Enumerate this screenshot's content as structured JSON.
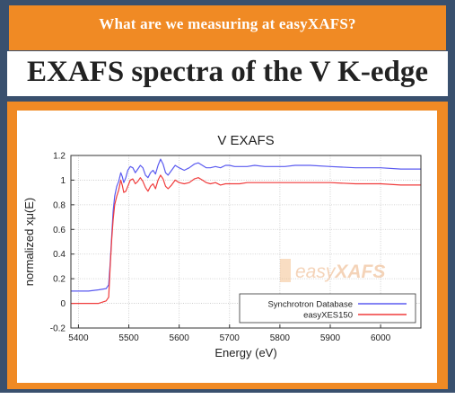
{
  "banner": {
    "text": "What are we measuring at easyXAFS?"
  },
  "heading": {
    "text": "EXAFS spectra of the V K-edge"
  },
  "watermark": {
    "prefix": "easy",
    "suffix": "XAFS"
  },
  "colors": {
    "navy": "#39506e",
    "orange": "#f08a24",
    "series_blue": "#5b5bf0",
    "series_red": "#f03c3c"
  },
  "chart_data": {
    "type": "line",
    "title": "V EXAFS",
    "xlabel": "Energy   (eV)",
    "ylabel": "normalized xμ(E)",
    "xlim": [
      5385,
      6080
    ],
    "ylim": [
      -0.2,
      1.2
    ],
    "xticks": [
      "5400",
      "5500",
      "5600",
      "5700",
      "5800",
      "5900",
      "6000"
    ],
    "yticks": [
      "-0.2",
      "0",
      "0.2",
      "0.4",
      "0.6",
      "0.8",
      "1",
      "1.2"
    ],
    "grid": true,
    "legend_position": "bottom-right",
    "series": [
      {
        "name": "Synchrotron Database",
        "color": "#5b5bf0",
        "x": [
          5385,
          5400,
          5420,
          5440,
          5455,
          5460,
          5463,
          5466,
          5469,
          5472,
          5476,
          5480,
          5484,
          5487,
          5490,
          5494,
          5498,
          5503,
          5508,
          5513,
          5518,
          5523,
          5528,
          5533,
          5538,
          5543,
          5548,
          5553,
          5558,
          5563,
          5568,
          5573,
          5578,
          5585,
          5592,
          5600,
          5610,
          5620,
          5630,
          5638,
          5646,
          5654,
          5662,
          5672,
          5682,
          5692,
          5700,
          5710,
          5720,
          5735,
          5750,
          5770,
          5790,
          5810,
          5830,
          5860,
          5900,
          5950,
          6000,
          6040,
          6080
        ],
        "y": [
          0.1,
          0.1,
          0.1,
          0.11,
          0.12,
          0.15,
          0.33,
          0.55,
          0.75,
          0.87,
          0.95,
          0.99,
          1.06,
          1.03,
          0.98,
          1.02,
          1.08,
          1.11,
          1.1,
          1.06,
          1.09,
          1.12,
          1.1,
          1.04,
          1.02,
          1.06,
          1.08,
          1.05,
          1.12,
          1.17,
          1.13,
          1.06,
          1.04,
          1.08,
          1.12,
          1.1,
          1.08,
          1.1,
          1.13,
          1.14,
          1.12,
          1.1,
          1.1,
          1.11,
          1.1,
          1.12,
          1.12,
          1.11,
          1.11,
          1.11,
          1.12,
          1.11,
          1.11,
          1.11,
          1.12,
          1.12,
          1.11,
          1.1,
          1.1,
          1.09,
          1.09
        ]
      },
      {
        "name": "easyXES150",
        "color": "#f03c3c",
        "x": [
          5385,
          5400,
          5420,
          5440,
          5455,
          5460,
          5463,
          5466,
          5469,
          5472,
          5476,
          5480,
          5484,
          5487,
          5490,
          5494,
          5498,
          5503,
          5508,
          5513,
          5518,
          5523,
          5528,
          5533,
          5538,
          5543,
          5548,
          5553,
          5558,
          5563,
          5568,
          5573,
          5578,
          5585,
          5592,
          5600,
          5610,
          5620,
          5630,
          5638,
          5646,
          5654,
          5662,
          5672,
          5682,
          5692,
          5700,
          5710,
          5720,
          5735,
          5750,
          5770,
          5790,
          5810,
          5830,
          5860,
          5900,
          5950,
          6000,
          6040,
          6080
        ],
        "y": [
          0.0,
          0.0,
          0.0,
          0.0,
          0.02,
          0.05,
          0.3,
          0.52,
          0.68,
          0.8,
          0.87,
          0.92,
          1.0,
          0.96,
          0.9,
          0.91,
          0.95,
          1.0,
          1.01,
          0.97,
          0.99,
          1.02,
          0.99,
          0.94,
          0.91,
          0.95,
          0.97,
          0.93,
          1.0,
          1.04,
          1.01,
          0.95,
          0.93,
          0.96,
          1.0,
          0.98,
          0.97,
          0.98,
          1.01,
          1.02,
          1.0,
          0.98,
          0.97,
          0.98,
          0.96,
          0.97,
          0.97,
          0.97,
          0.97,
          0.98,
          0.98,
          0.98,
          0.98,
          0.98,
          0.98,
          0.98,
          0.98,
          0.97,
          0.97,
          0.96,
          0.96
        ]
      }
    ]
  }
}
